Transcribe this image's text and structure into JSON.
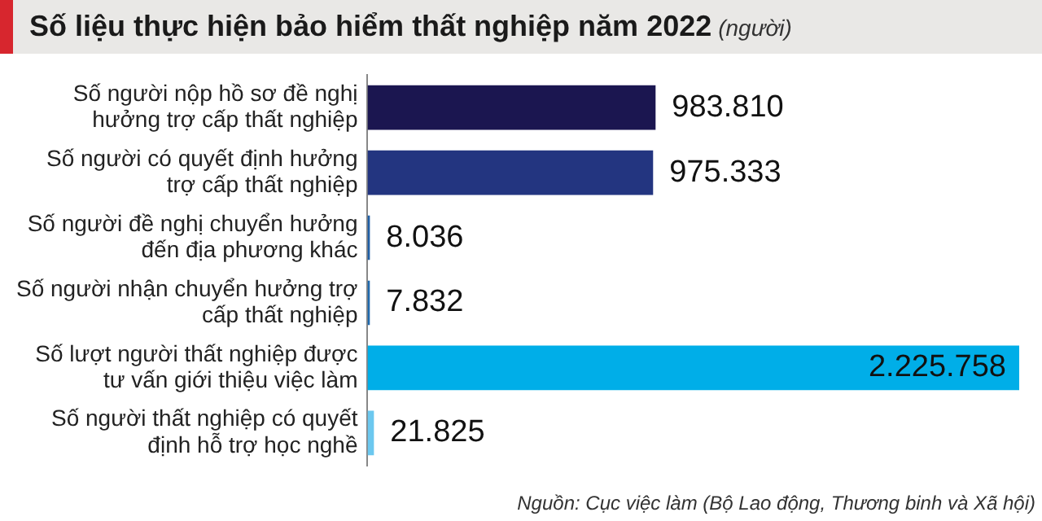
{
  "chart_data": {
    "type": "bar",
    "orientation": "horizontal",
    "title": "Số liệu thực hiện bảo hiểm thất nghiệp năm 2022",
    "subtitle": "(người)",
    "categories": [
      "Số người nộp hồ sơ đề nghị hưởng trợ cấp thất nghiệp",
      "Số người có quyết định hưởng trợ cấp thất nghiệp",
      "Số người đề nghị chuyển hưởng đến địa phương khác",
      "Số người nhận chuyển hưởng trợ cấp thất nghiệp",
      "Số lượt người thất nghiệp được tư vấn giới thiệu việc làm",
      "Số người thất nghiệp có quyết định hỗ trợ học nghề"
    ],
    "values": [
      983810,
      975333,
      8036,
      7832,
      2225758,
      21825
    ],
    "value_labels": [
      "983.810",
      "975.333",
      "8.036",
      "7.832",
      "2.225.758",
      "21.825"
    ],
    "colors": [
      "#1b1650",
      "#233580",
      "#1f5fa6",
      "#1f6aae",
      "#00aee8",
      "#6cc8ef"
    ],
    "legend": false,
    "annotations": [
      "Nguồn: Cục việc làm (Bộ Lao động, Thương binh và Xã hội)"
    ]
  }
}
